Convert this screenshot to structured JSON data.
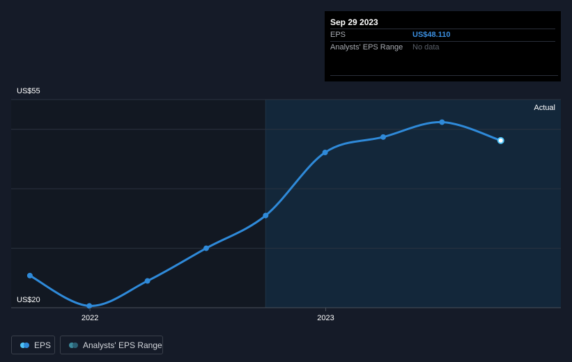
{
  "tooltip": {
    "date": "Sep 29 2023",
    "rows": [
      {
        "label": "EPS",
        "value": "US$48.110"
      },
      {
        "label": "Analysts' EPS Range",
        "value": "No data"
      }
    ]
  },
  "legend": {
    "items": [
      {
        "label": "EPS"
      },
      {
        "label": "Analysts' EPS Range"
      }
    ]
  },
  "colors": {
    "background": "#151b28",
    "past_region": "#121822",
    "actual_region": "#13273a",
    "eps_line": "#2f8ad9",
    "eps_end_marker": "#4fc3f7",
    "range_swatch": "#2a5f73",
    "gridline": "#2c3340",
    "axis_text": "#ffffff"
  },
  "chart_data": {
    "type": "line",
    "title": "",
    "xlabel": "",
    "ylabel": "",
    "y_axis_labels": [
      "US$55",
      "US$20"
    ],
    "ylim": [
      20,
      55
    ],
    "x_ticks": [
      {
        "label": "2022",
        "date": "2022-01-01"
      },
      {
        "label": "2023",
        "date": "2023-01-01"
      }
    ],
    "xlim": [
      "2021-09-01",
      "2023-12-31"
    ],
    "actual_region_start": "2022-09-30",
    "region_label": "Actual",
    "grid": true,
    "series": [
      {
        "name": "EPS",
        "points": [
          {
            "x": "2021-09-30",
            "y": 25.4
          },
          {
            "x": "2021-12-31",
            "y": 20.3
          },
          {
            "x": "2022-03-31",
            "y": 24.5
          },
          {
            "x": "2022-06-30",
            "y": 30.0
          },
          {
            "x": "2022-09-30",
            "y": 35.5
          },
          {
            "x": "2022-12-31",
            "y": 46.1
          },
          {
            "x": "2023-03-31",
            "y": 48.7
          },
          {
            "x": "2023-06-30",
            "y": 51.2
          },
          {
            "x": "2023-09-29",
            "y": 48.11
          }
        ]
      }
    ]
  }
}
